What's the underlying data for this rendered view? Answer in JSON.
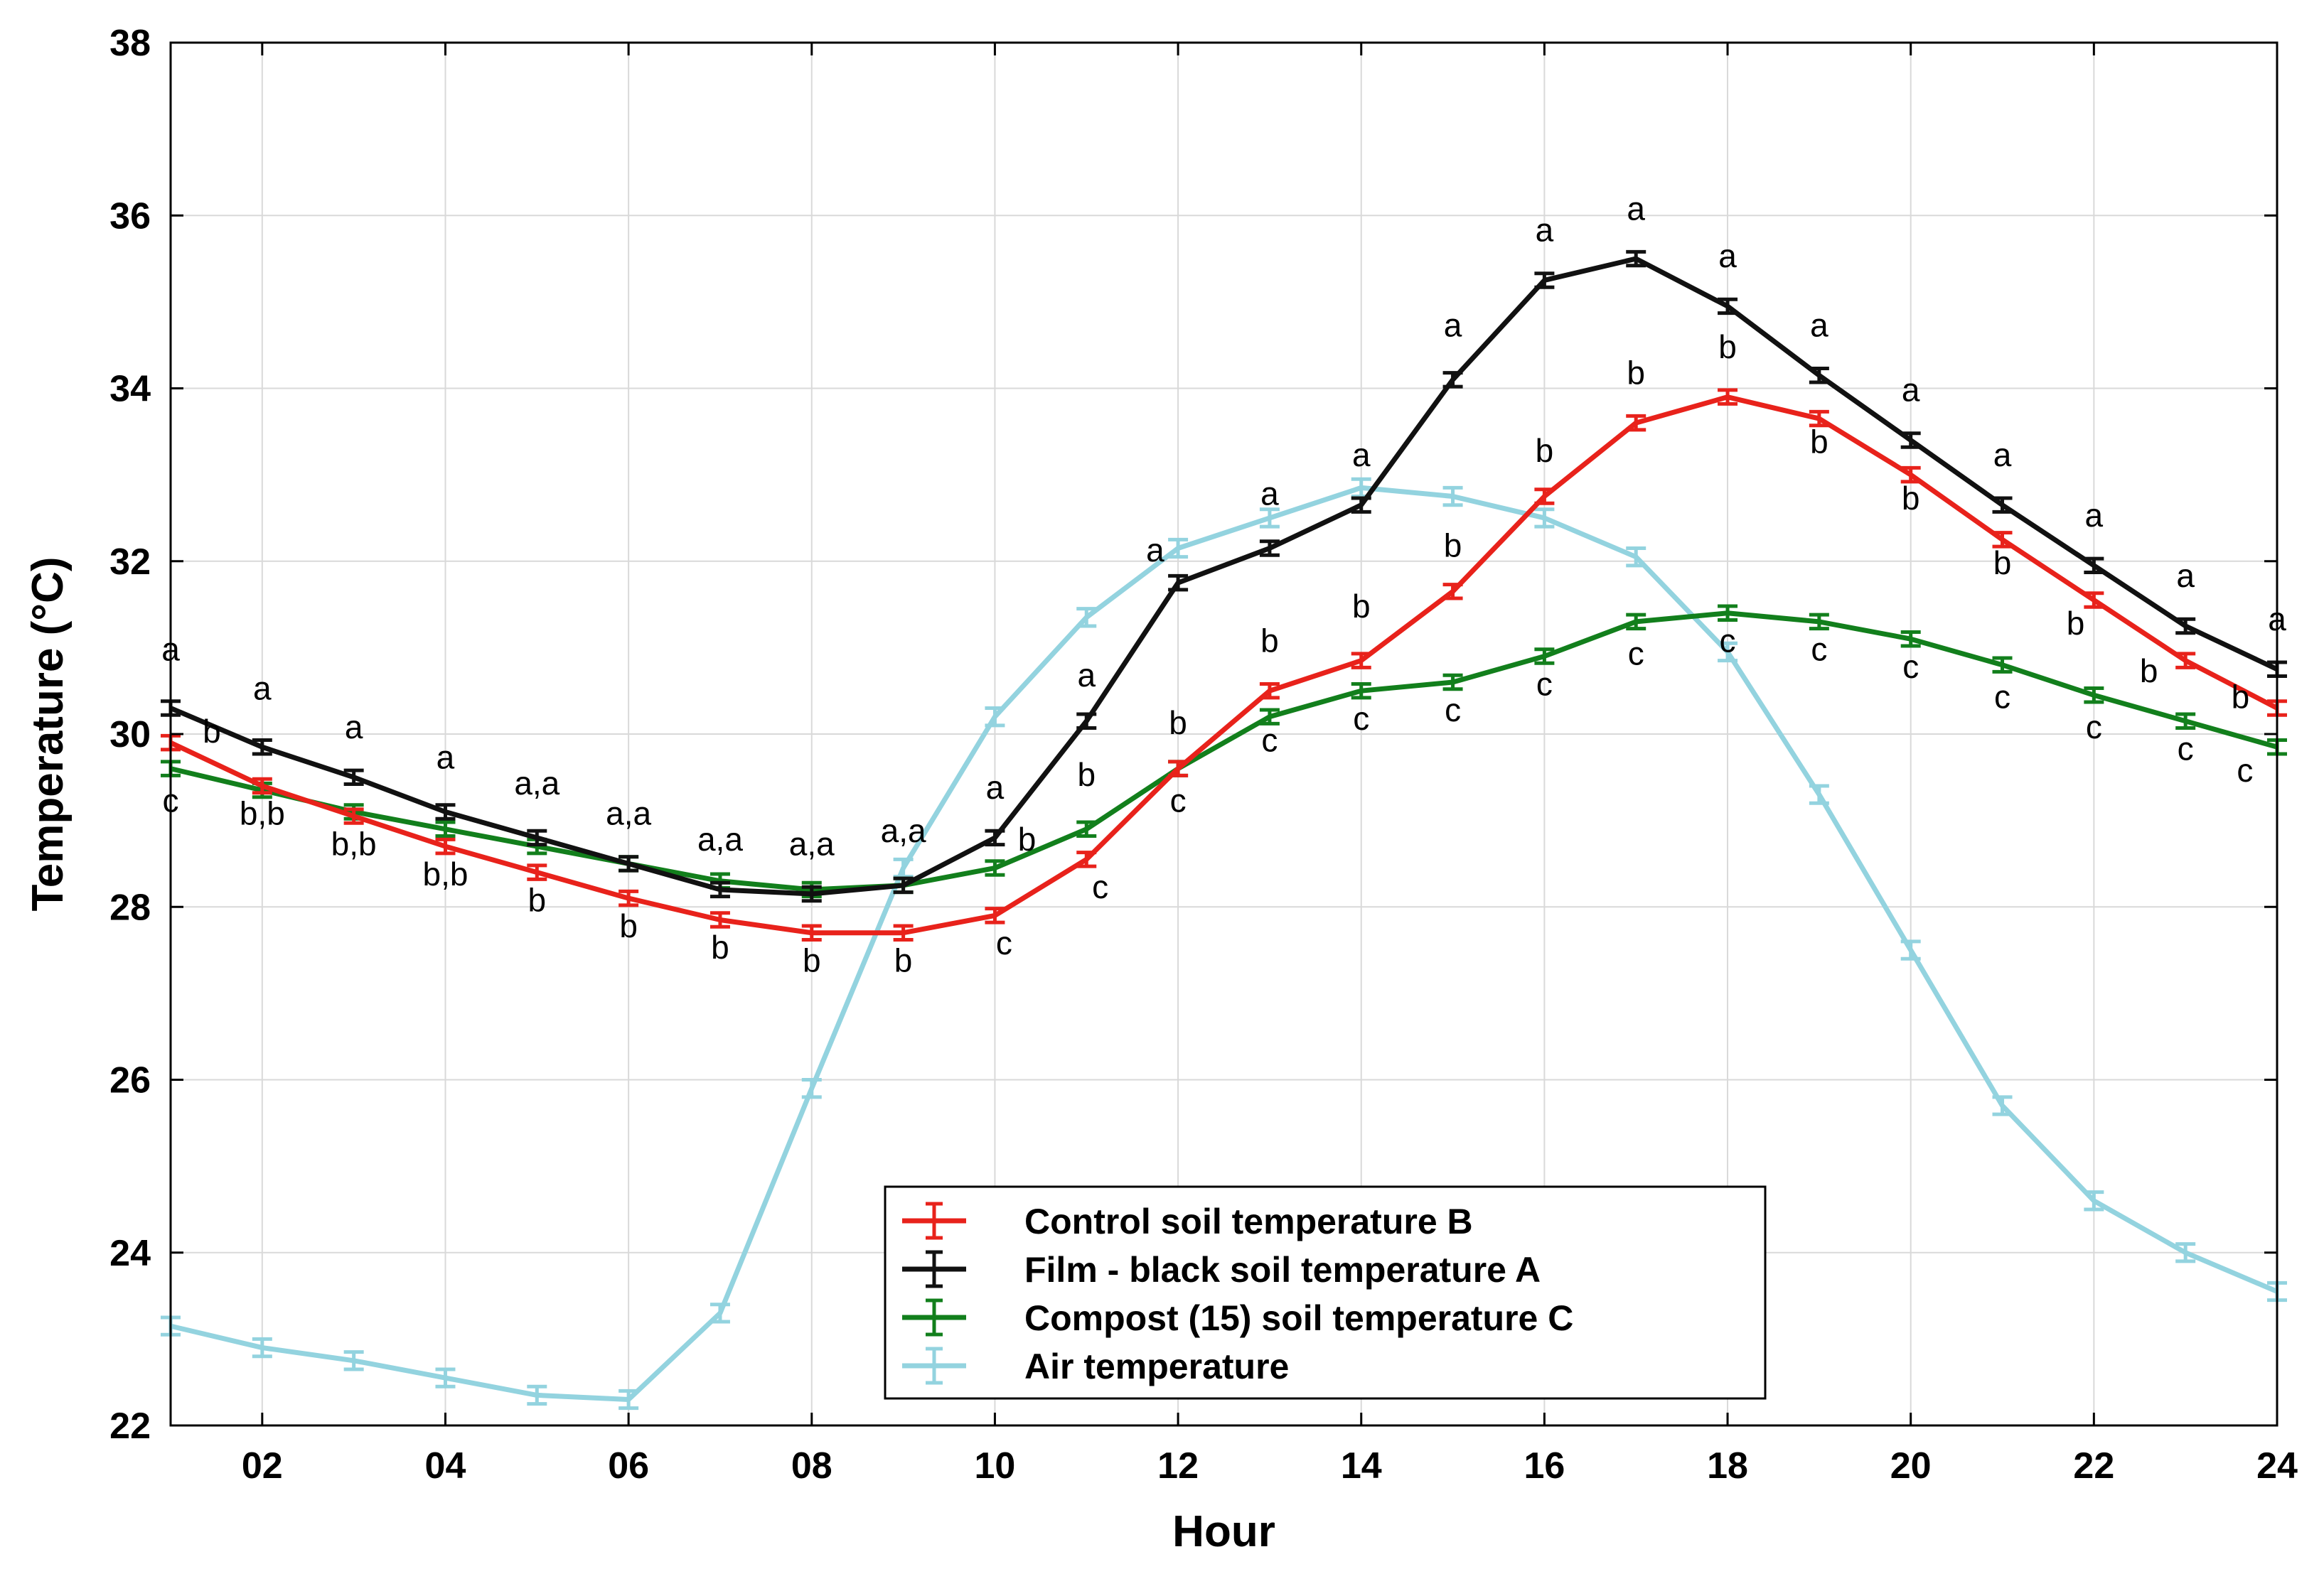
{
  "chart_data": {
    "type": "line",
    "title": "",
    "xlabel": "Hour",
    "ylabel": "Temperature (°C)",
    "xlim": [
      1,
      24
    ],
    "ylim": [
      22,
      38
    ],
    "x_ticks": [
      2,
      4,
      6,
      8,
      10,
      12,
      14,
      16,
      18,
      20,
      22,
      24
    ],
    "x_tick_labels": [
      "02",
      "04",
      "06",
      "08",
      "10",
      "12",
      "14",
      "16",
      "18",
      "20",
      "22",
      "24"
    ],
    "y_ticks": [
      22,
      24,
      26,
      28,
      30,
      32,
      34,
      36,
      38
    ],
    "y_tick_labels": [
      "22",
      "24",
      "26",
      "28",
      "30",
      "32",
      "34",
      "36",
      "38"
    ],
    "grid": true,
    "legend_position": "bottom-center",
    "x": [
      1,
      2,
      3,
      4,
      5,
      6,
      7,
      8,
      9,
      10,
      11,
      12,
      13,
      14,
      15,
      16,
      17,
      18,
      19,
      20,
      21,
      22,
      23,
      24
    ],
    "series": [
      {
        "name": "Control soil temperature B",
        "color": "#e8221b",
        "values": [
          29.9,
          29.4,
          29.05,
          28.7,
          28.4,
          28.1,
          27.85,
          27.7,
          27.7,
          27.9,
          28.55,
          29.6,
          30.5,
          30.85,
          31.65,
          32.75,
          33.6,
          33.9,
          33.65,
          33.0,
          32.25,
          31.55,
          30.85,
          30.3
        ],
        "error": 0.08
      },
      {
        "name": "Film - black soil temperature A",
        "color": "#111111",
        "values": [
          30.3,
          29.85,
          29.5,
          29.1,
          28.8,
          28.5,
          28.2,
          28.15,
          28.25,
          28.8,
          30.15,
          31.75,
          32.15,
          32.65,
          34.1,
          35.25,
          35.5,
          34.95,
          34.15,
          33.4,
          32.65,
          31.95,
          31.25,
          30.75
        ],
        "error": 0.08
      },
      {
        "name": "Compost (15) soil temperature C",
        "color": "#127f1c",
        "values": [
          29.6,
          29.35,
          29.1,
          28.9,
          28.7,
          28.5,
          28.3,
          28.2,
          28.25,
          28.45,
          28.9,
          29.6,
          30.2,
          30.5,
          30.6,
          30.9,
          31.3,
          31.4,
          31.3,
          31.1,
          30.8,
          30.45,
          30.15,
          29.85
        ],
        "error": 0.08
      },
      {
        "name": "Air temperature",
        "color": "#93d3df",
        "values": [
          23.15,
          22.9,
          22.75,
          22.55,
          22.35,
          22.3,
          23.3,
          25.9,
          28.45,
          30.2,
          31.35,
          32.15,
          32.5,
          32.85,
          32.75,
          32.5,
          32.05,
          30.95,
          29.3,
          27.5,
          25.7,
          24.6,
          24.0,
          23.55
        ],
        "error": 0.1
      }
    ],
    "annotations": [
      {
        "x": 1,
        "y": 30.85,
        "text": "a"
      },
      {
        "x": 1.45,
        "y": 29.9,
        "text": "b"
      },
      {
        "x": 1,
        "y": 29.1,
        "text": "c"
      },
      {
        "x": 2,
        "y": 30.4,
        "text": "a"
      },
      {
        "x": 2,
        "y": 28.95,
        "text": "b,b"
      },
      {
        "x": 3,
        "y": 29.95,
        "text": "a"
      },
      {
        "x": 3,
        "y": 28.6,
        "text": "b,b"
      },
      {
        "x": 4,
        "y": 29.6,
        "text": "a"
      },
      {
        "x": 4,
        "y": 28.25,
        "text": "b,b"
      },
      {
        "x": 5,
        "y": 29.3,
        "text": "a,a"
      },
      {
        "x": 5,
        "y": 27.95,
        "text": "b"
      },
      {
        "x": 6,
        "y": 28.95,
        "text": "a,a"
      },
      {
        "x": 6,
        "y": 27.65,
        "text": "b"
      },
      {
        "x": 7,
        "y": 28.65,
        "text": "a,a"
      },
      {
        "x": 7,
        "y": 27.4,
        "text": "b"
      },
      {
        "x": 8,
        "y": 28.6,
        "text": "a,a"
      },
      {
        "x": 8,
        "y": 27.25,
        "text": "b"
      },
      {
        "x": 9,
        "y": 28.75,
        "text": "a,a"
      },
      {
        "x": 9,
        "y": 27.25,
        "text": "b"
      },
      {
        "x": 10,
        "y": 29.25,
        "text": "a"
      },
      {
        "x": 10.35,
        "y": 28.65,
        "text": "b"
      },
      {
        "x": 10.1,
        "y": 27.45,
        "text": "c"
      },
      {
        "x": 11,
        "y": 30.55,
        "text": "a"
      },
      {
        "x": 11,
        "y": 29.4,
        "text": "b"
      },
      {
        "x": 11.15,
        "y": 28.1,
        "text": "c"
      },
      {
        "x": 11.75,
        "y": 32.0,
        "text": "a"
      },
      {
        "x": 12,
        "y": 30.0,
        "text": "b"
      },
      {
        "x": 12,
        "y": 29.1,
        "text": "c"
      },
      {
        "x": 13,
        "y": 32.65,
        "text": "a"
      },
      {
        "x": 13,
        "y": 30.95,
        "text": "b"
      },
      {
        "x": 13,
        "y": 29.8,
        "text": "c"
      },
      {
        "x": 14,
        "y": 33.1,
        "text": "a"
      },
      {
        "x": 14,
        "y": 31.35,
        "text": "b"
      },
      {
        "x": 14,
        "y": 30.05,
        "text": "c"
      },
      {
        "x": 15,
        "y": 34.6,
        "text": "a"
      },
      {
        "x": 15,
        "y": 32.05,
        "text": "b"
      },
      {
        "x": 15,
        "y": 30.15,
        "text": "c"
      },
      {
        "x": 16,
        "y": 35.7,
        "text": "a"
      },
      {
        "x": 16,
        "y": 33.15,
        "text": "b"
      },
      {
        "x": 16,
        "y": 30.45,
        "text": "c"
      },
      {
        "x": 17,
        "y": 35.95,
        "text": "a"
      },
      {
        "x": 17,
        "y": 34.05,
        "text": "b"
      },
      {
        "x": 17,
        "y": 30.8,
        "text": "c"
      },
      {
        "x": 18,
        "y": 35.4,
        "text": "a"
      },
      {
        "x": 18,
        "y": 34.35,
        "text": "b"
      },
      {
        "x": 18,
        "y": 30.95,
        "text": "c"
      },
      {
        "x": 19,
        "y": 34.6,
        "text": "a"
      },
      {
        "x": 19,
        "y": 33.25,
        "text": "b"
      },
      {
        "x": 19,
        "y": 30.85,
        "text": "c"
      },
      {
        "x": 20,
        "y": 33.85,
        "text": "a"
      },
      {
        "x": 20,
        "y": 32.6,
        "text": "b"
      },
      {
        "x": 20,
        "y": 30.65,
        "text": "c"
      },
      {
        "x": 21,
        "y": 33.1,
        "text": "a"
      },
      {
        "x": 21,
        "y": 31.85,
        "text": "b"
      },
      {
        "x": 21,
        "y": 30.3,
        "text": "c"
      },
      {
        "x": 22,
        "y": 32.4,
        "text": "a"
      },
      {
        "x": 21.8,
        "y": 31.15,
        "text": "b"
      },
      {
        "x": 22,
        "y": 29.95,
        "text": "c"
      },
      {
        "x": 23,
        "y": 31.7,
        "text": "a"
      },
      {
        "x": 22.6,
        "y": 30.6,
        "text": "b"
      },
      {
        "x": 23,
        "y": 29.7,
        "text": "c"
      },
      {
        "x": 24,
        "y": 31.2,
        "text": "a"
      },
      {
        "x": 23.6,
        "y": 30.3,
        "text": "b"
      },
      {
        "x": 23.65,
        "y": 29.45,
        "text": "c"
      }
    ]
  }
}
